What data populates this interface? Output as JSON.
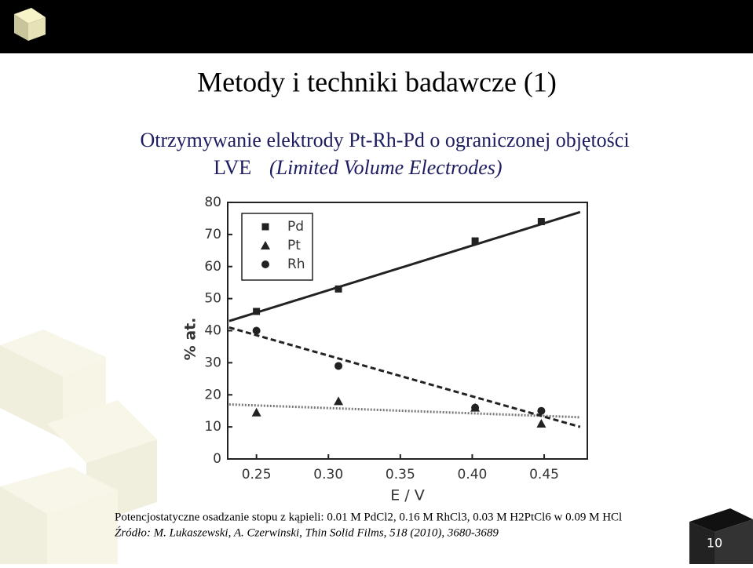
{
  "slide": {
    "title": "Metody i techniki badawcze (1)",
    "subtitle": "Otrzymywanie elektrody Pt-Rh-Pd o ograniczonej objętości",
    "subtitle_abbr": "LVE",
    "subtitle_full": "(Limited Volume Electrodes)",
    "caption": "Potencjostatyczne osadzanie stopu z kąpieli: 0.01 M PdCl2, 0.16 M RhCl3, 0.03 M H2PtCl6 w 0.09 M HCl",
    "source": "Źródło: M. Lukaszewski, A. Czerwinski, Thin Solid Films, 518 (2010), 3680-3689",
    "page_number": "10"
  },
  "chart_data": {
    "type": "scatter",
    "x_label": "E / V",
    "y_label": "% at.",
    "xlim": [
      0.23,
      0.48
    ],
    "ylim": [
      0,
      80
    ],
    "xticks": [
      0.25,
      {
        "value": 0.3,
        "label": "0.30"
      },
      0.35,
      {
        "value": 0.4,
        "label": "0.40"
      },
      0.45
    ],
    "yticks": [
      0,
      10,
      20,
      30,
      40,
      50,
      60,
      70,
      80
    ],
    "legend": "top-left",
    "series": [
      {
        "name": "Pd",
        "color": "#222222",
        "marker": "square",
        "x": [
          0.25,
          0.307,
          0.402,
          0.448
        ],
        "values": [
          46,
          53,
          68,
          74
        ]
      },
      {
        "name": "Pt",
        "color": "#222222",
        "marker": "triangle",
        "x": [
          0.25,
          0.307,
          0.402,
          0.448
        ],
        "values": [
          14.5,
          18,
          16,
          11
        ]
      },
      {
        "name": "Rh",
        "color": "#222222",
        "marker": "circle",
        "x": [
          0.25,
          0.307,
          0.402,
          0.448
        ],
        "values": [
          40,
          29,
          16,
          15
        ]
      }
    ],
    "fits": [
      {
        "color": "#222222",
        "style": "solid",
        "x": [
          0.231,
          0.475
        ],
        "values": [
          43,
          77
        ]
      },
      {
        "color": "#777777",
        "style": "dotted",
        "x": [
          0.231,
          0.475
        ],
        "values": [
          17,
          13
        ]
      },
      {
        "color": "#222222",
        "style": "dashed",
        "x": [
          0.231,
          0.475
        ],
        "values": [
          41,
          10
        ]
      }
    ]
  }
}
